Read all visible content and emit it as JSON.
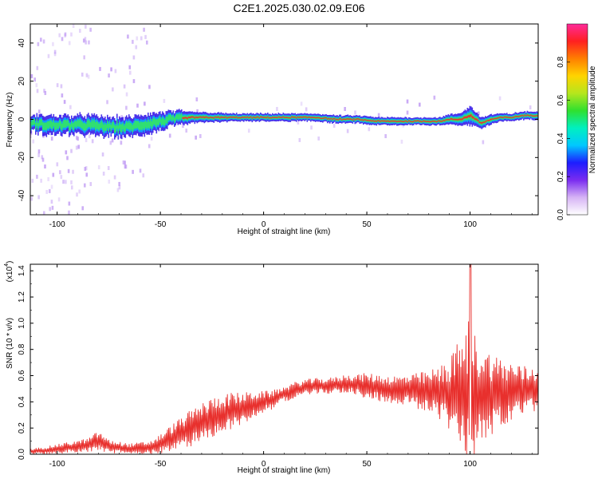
{
  "title": "C2E1.2025.030.02.09.E06",
  "colors": {
    "snr_line": "#e8302d",
    "ridge_core": "#e33b2f",
    "ridge_mid": "#33e36a",
    "ridge_halo": "#2e10e6",
    "scatter": "#b78cf2",
    "frame": "#000000"
  },
  "colorbar": {
    "label": "Normalized spectral amplitude",
    "ticks": [
      "0.0",
      "0.2",
      "0.4",
      "0.6",
      "0.8"
    ],
    "tick_values": [
      0.0,
      0.2,
      0.4,
      0.6,
      0.8
    ],
    "range": [
      0,
      1
    ],
    "colormap": [
      "#ffffff",
      "#d6b3f5",
      "#7a2cf0",
      "#1d1dff",
      "#00c8ff",
      "#00f0c0",
      "#2fe02f",
      "#b5e61d",
      "#ffd400",
      "#ff7f00",
      "#ff2020",
      "#ff2a9a"
    ]
  },
  "chart_data": [
    {
      "type": "heatmap",
      "xlabel": "Height of straight line (km)",
      "ylabel": "Frequency (Hz)",
      "xlim": [
        -113,
        133
      ],
      "ylim": [
        -50,
        50
      ],
      "xticks": [
        "-100",
        "-50",
        "0",
        "50",
        "100"
      ],
      "xtick_values": [
        -100,
        -50,
        0,
        50,
        100
      ],
      "yticks": [
        "-40",
        "-20",
        "0",
        "20",
        "40"
      ],
      "ytick_values": [
        -40,
        -20,
        0,
        20,
        40
      ],
      "ridge": {
        "x": [
          -113,
          -105,
          -95,
          -85,
          -75,
          -65,
          -55,
          -45,
          -35,
          -25,
          -15,
          -5,
          5,
          15,
          25,
          35,
          45,
          55,
          65,
          75,
          85,
          90,
          95,
          100,
          105,
          110,
          115,
          120,
          125,
          133
        ],
        "center_hz": [
          -2,
          -3,
          -3,
          -3,
          -4,
          -4,
          -2,
          0,
          1,
          1,
          1,
          1,
          1,
          1,
          1,
          0,
          0,
          -1,
          -1,
          -1,
          -1,
          0,
          0,
          2,
          -2,
          0,
          1,
          1,
          2,
          2
        ],
        "half_width_hz": [
          4,
          5,
          5,
          5,
          5,
          5,
          5,
          4,
          3,
          2.5,
          2,
          2,
          2,
          2,
          2,
          2,
          2,
          2,
          2,
          2,
          2,
          2.5,
          3,
          5,
          3,
          2.5,
          2,
          2,
          2,
          2
        ]
      }
    },
    {
      "type": "line",
      "xlabel": "Height of straight line (km)",
      "ylabel": "SNR (10 * v/v)",
      "scale_label": "(x10",
      "scale_exponent": "4",
      "xlim": [
        -113,
        133
      ],
      "ylim": [
        0,
        1.45
      ],
      "xticks": [
        "-100",
        "-50",
        "0",
        "50",
        "100"
      ],
      "xtick_values": [
        -100,
        -50,
        0,
        50,
        100
      ],
      "yticks": [
        "0.0",
        "0.2",
        "0.4",
        "0.6",
        "0.8",
        "1.0",
        "1.2",
        "1.4"
      ],
      "ytick_values": [
        0,
        0.2,
        0.4,
        0.6,
        0.8,
        1.0,
        1.2,
        1.4
      ],
      "series": [
        {
          "x": [
            -113,
            -105,
            -95,
            -85,
            -80,
            -75,
            -65,
            -55,
            -50,
            -45,
            -40,
            -35,
            -30,
            -25,
            -20,
            -15,
            -10,
            -5,
            0,
            5,
            10,
            15,
            20,
            25,
            30,
            35,
            40,
            45,
            50,
            55,
            60,
            65,
            70,
            75,
            80,
            85,
            90,
            93,
            95,
            97,
            99,
            100,
            101,
            103,
            105,
            110,
            115,
            120,
            125,
            130,
            133
          ],
          "mean": [
            0.02,
            0.03,
            0.05,
            0.07,
            0.1,
            0.06,
            0.04,
            0.05,
            0.08,
            0.12,
            0.16,
            0.2,
            0.24,
            0.28,
            0.31,
            0.33,
            0.35,
            0.38,
            0.4,
            0.42,
            0.46,
            0.49,
            0.51,
            0.52,
            0.52,
            0.53,
            0.54,
            0.53,
            0.52,
            0.51,
            0.5,
            0.49,
            0.49,
            0.48,
            0.48,
            0.47,
            0.46,
            0.45,
            0.46,
            0.44,
            0.45,
            0.5,
            0.48,
            0.45,
            0.46,
            0.46,
            0.46,
            0.47,
            0.48,
            0.49,
            0.5
          ],
          "amplitude": [
            0.02,
            0.03,
            0.04,
            0.05,
            0.08,
            0.05,
            0.04,
            0.05,
            0.07,
            0.1,
            0.12,
            0.14,
            0.15,
            0.15,
            0.15,
            0.14,
            0.12,
            0.1,
            0.08,
            0.07,
            0.06,
            0.06,
            0.06,
            0.06,
            0.06,
            0.06,
            0.07,
            0.08,
            0.1,
            0.1,
            0.1,
            0.11,
            0.12,
            0.14,
            0.16,
            0.2,
            0.28,
            0.36,
            0.45,
            0.45,
            0.5,
            0.95,
            0.55,
            0.42,
            0.38,
            0.32,
            0.28,
            0.24,
            0.2,
            0.18,
            0.17
          ]
        }
      ]
    }
  ]
}
